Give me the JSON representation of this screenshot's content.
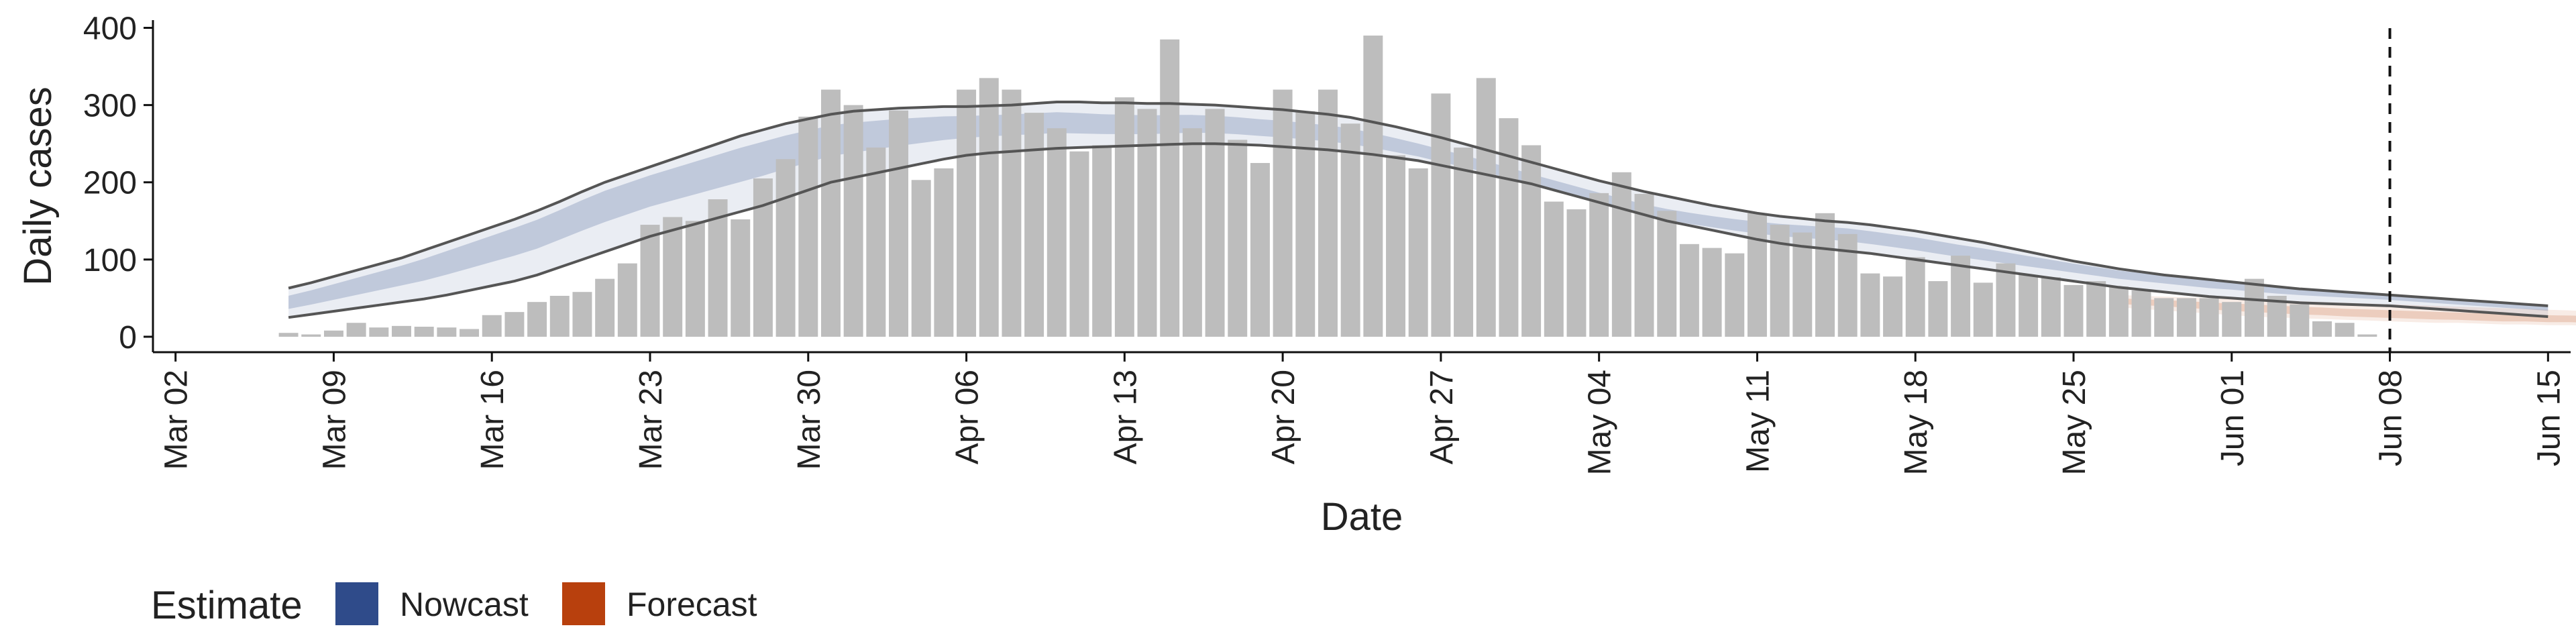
{
  "chart_data": {
    "type": "bar",
    "xlabel": "Date",
    "ylabel": "Daily cases",
    "ylim": [
      -20,
      410
    ],
    "y_ticks": [
      0,
      100,
      200,
      300,
      400
    ],
    "x_ticks": [
      {
        "date": "2020-03-02",
        "label": "Mar 02"
      },
      {
        "date": "2020-03-09",
        "label": "Mar 09"
      },
      {
        "date": "2020-03-16",
        "label": "Mar 16"
      },
      {
        "date": "2020-03-23",
        "label": "Mar 23"
      },
      {
        "date": "2020-03-30",
        "label": "Mar 30"
      },
      {
        "date": "2020-04-06",
        "label": "Apr 06"
      },
      {
        "date": "2020-04-13",
        "label": "Apr 13"
      },
      {
        "date": "2020-04-20",
        "label": "Apr 20"
      },
      {
        "date": "2020-04-27",
        "label": "Apr 27"
      },
      {
        "date": "2020-05-04",
        "label": "May 04"
      },
      {
        "date": "2020-05-11",
        "label": "May 11"
      },
      {
        "date": "2020-05-18",
        "label": "May 18"
      },
      {
        "date": "2020-05-25",
        "label": "May 25"
      },
      {
        "date": "2020-06-01",
        "label": "Jun 01"
      },
      {
        "date": "2020-06-08",
        "label": "Jun 08"
      },
      {
        "date": "2020-06-15",
        "label": "Jun 15"
      }
    ],
    "xlim": [
      "2020-03-01",
      "2020-06-16"
    ],
    "vline_date": "2020-06-08",
    "grid": false,
    "legend": {
      "title": "Estimate",
      "position": "bottom-left",
      "entries": [
        {
          "name": "Nowcast",
          "color": "#2f4b8a"
        },
        {
          "name": "Forecast",
          "color": "#b8400d"
        }
      ]
    },
    "bar_color": "#bdbdbd",
    "bars": {
      "start_date": "2020-03-07",
      "values": [
        5,
        3,
        8,
        18,
        12,
        14,
        13,
        12,
        10,
        28,
        32,
        45,
        53,
        58,
        75,
        95,
        145,
        155,
        150,
        178,
        152,
        205,
        230,
        285,
        320,
        300,
        245,
        293,
        203,
        218,
        320,
        335,
        320,
        290,
        270,
        240,
        248,
        310,
        295,
        385,
        270,
        295,
        255,
        225,
        320,
        292,
        320,
        276,
        390,
        235,
        218,
        315,
        245,
        335,
        283,
        248,
        175,
        165,
        186,
        213,
        185,
        163,
        120,
        115,
        108,
        160,
        145,
        135,
        160,
        133,
        82,
        78,
        103,
        72,
        105,
        70,
        95,
        80,
        77,
        67,
        72,
        65,
        60,
        50,
        50,
        50,
        45,
        75,
        53,
        42,
        20,
        18,
        3
      ]
    },
    "nowcast": {
      "start_date": "2020-03-07",
      "median": [
        45,
        52,
        60,
        68,
        76,
        84,
        92,
        102,
        112,
        122,
        132,
        142,
        155,
        168,
        180,
        190,
        200,
        208,
        216,
        224,
        232,
        240,
        248,
        255,
        262,
        265,
        268,
        271,
        273,
        275,
        276,
        277,
        278,
        279,
        280,
        278,
        276,
        275,
        274,
        275,
        276,
        275,
        273,
        270,
        268,
        265,
        262,
        258,
        252,
        245,
        238,
        230,
        223,
        215,
        207,
        198,
        190,
        182,
        174,
        166,
        158,
        152,
        148,
        145,
        142,
        140,
        138,
        137,
        136,
        134,
        130,
        126,
        122,
        117,
        112,
        108,
        104,
        100,
        96,
        92,
        88,
        84,
        81,
        78,
        75,
        72,
        70,
        67,
        64,
        62,
        60,
        58,
        56,
        54,
        52,
        50,
        48,
        46,
        44,
        42,
        40
      ],
      "lower": [
        25,
        29,
        33,
        37,
        41,
        45,
        49,
        54,
        60,
        66,
        72,
        80,
        90,
        100,
        110,
        120,
        130,
        138,
        146,
        154,
        162,
        170,
        180,
        190,
        200,
        206,
        212,
        218,
        224,
        230,
        235,
        238,
        240,
        242,
        244,
        245,
        246,
        247,
        248,
        249,
        250,
        250,
        249,
        248,
        246,
        244,
        242,
        239,
        236,
        232,
        228,
        222,
        216,
        210,
        204,
        198,
        190,
        182,
        174,
        166,
        158,
        150,
        144,
        138,
        132,
        126,
        121,
        117,
        114,
        111,
        108,
        104,
        100,
        96,
        92,
        88,
        84,
        80,
        76,
        72,
        68,
        64,
        61,
        58,
        55,
        52,
        50,
        48,
        46,
        44,
        43,
        42,
        41,
        40,
        38,
        36,
        34,
        32,
        30,
        28,
        26
      ],
      "upper": [
        63,
        70,
        78,
        86,
        94,
        102,
        112,
        122,
        132,
        142,
        152,
        163,
        175,
        188,
        200,
        210,
        220,
        230,
        240,
        250,
        260,
        268,
        276,
        282,
        288,
        292,
        294,
        296,
        297,
        298,
        298,
        299,
        300,
        302,
        304,
        304,
        303,
        303,
        302,
        302,
        301,
        300,
        298,
        296,
        294,
        291,
        288,
        284,
        278,
        272,
        265,
        258,
        250,
        242,
        234,
        226,
        218,
        210,
        202,
        195,
        188,
        182,
        176,
        170,
        165,
        160,
        156,
        153,
        150,
        148,
        145,
        141,
        137,
        132,
        127,
        122,
        116,
        110,
        104,
        98,
        93,
        88,
        84,
        80,
        77,
        74,
        71,
        68,
        65,
        62,
        60,
        58,
        56,
        54,
        52,
        50,
        48,
        46,
        44,
        42,
        40
      ]
    },
    "forecast": {
      "start_date": "2020-05-27",
      "median": [
        46,
        45,
        44,
        42,
        40,
        38,
        37,
        35,
        33,
        32,
        30,
        29,
        28,
        27,
        26,
        25,
        24,
        23,
        23,
        22,
        22,
        21
      ],
      "lower": [
        38,
        36,
        34,
        32,
        30,
        28,
        26,
        25,
        24,
        23,
        22,
        21,
        20,
        19,
        18,
        18,
        17,
        16,
        16,
        15,
        15,
        14
      ],
      "upper": [
        54,
        53,
        52,
        51,
        50,
        49,
        48,
        47,
        46,
        45,
        44,
        43,
        42,
        41,
        40,
        39,
        38,
        37,
        36,
        35,
        34,
        33
      ]
    }
  }
}
